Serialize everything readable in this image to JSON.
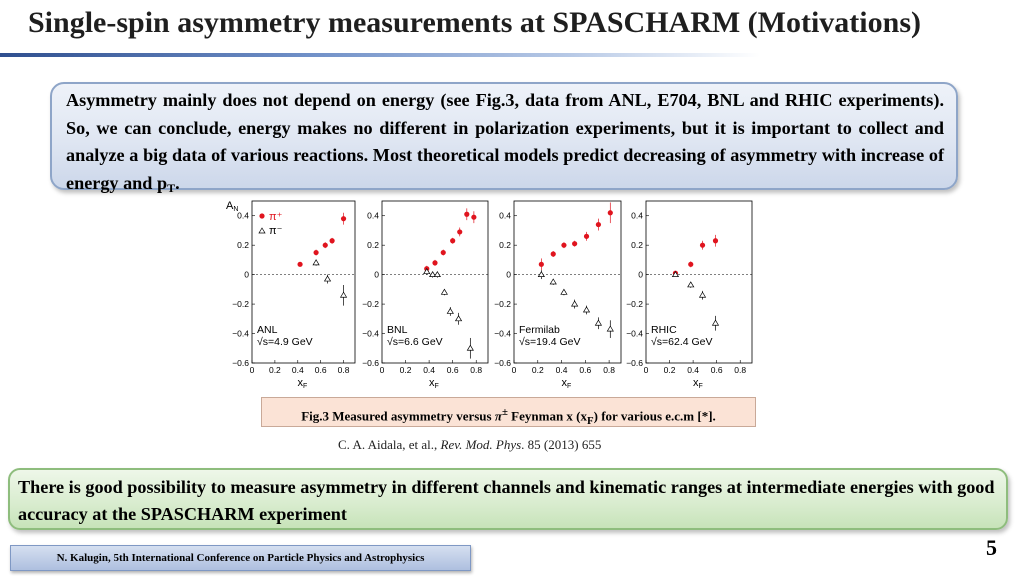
{
  "slide": {
    "title": "Single-spin asymmetry measurements at SPASCHARM (Motivations)",
    "top_text": "Asymmetry mainly does not depend on energy (see Fig.3, data from ANL, E704, BNL and RHIC experiments). So, we can conclude, energy makes no different in polarization experiments, but it is important to collect and analyze a big data of various reactions. Most theoretical models predict decreasing of asymmetry with increase of energy and p",
    "top_text_sub": "T",
    "top_text_end": ".",
    "caption_pre": "Fig.3 Measured asymmetry versus ",
    "caption_pion": "π",
    "caption_pm": "±",
    "caption_mid": " Feynman x (x",
    "caption_sub": "F",
    "caption_post": ") for various e.c.m [*].",
    "cite_authors": "C. A. Aidala, et al., ",
    "cite_journal": "Rev. Mod. Phys",
    "cite_rest": ". 85 (2013) 655",
    "bottom_text": "There is good possibility to measure asymmetry in different channels and kinematic ranges at intermediate energies with good accuracy at the SPASCHARM experiment",
    "page_number": "5",
    "footer": "N. Kalugin, 5th International Conference on Particle Physics and Astrophysics"
  },
  "colors": {
    "pi_plus": "#e0141e",
    "pi_minus": "#000000",
    "top_box": "#dfe6f2",
    "bottom_box": "#d8ecce",
    "caption_box": "#fbe3d6"
  },
  "chart_data": [
    {
      "type": "scatter",
      "title": "",
      "ylabel": "A_N",
      "xlabel": "x_F",
      "xlim": [
        0,
        0.9
      ],
      "ylim": [
        -0.6,
        0.5
      ],
      "xticks": [
        "0",
        "0.2",
        "0.4",
        "0.6",
        "0.8"
      ],
      "yticks": [
        "0.4",
        "0.2",
        "0",
        "−0.2",
        "−0.4",
        "−0.6"
      ],
      "legend": [
        "π⁺",
        "π⁻"
      ],
      "label_experiment": "ANL",
      "label_energy": "√s=4.9 GeV",
      "series": [
        {
          "name": "π⁺",
          "x": [
            0.42,
            0.56,
            0.64,
            0.7,
            0.8
          ],
          "y": [
            0.07,
            0.15,
            0.2,
            0.23,
            0.38
          ],
          "err": [
            0.01,
            0.02,
            0.02,
            0.02,
            0.04
          ]
        },
        {
          "name": "π⁻",
          "x": [
            0.56,
            0.66,
            0.8
          ],
          "y": [
            0.08,
            -0.03,
            -0.14
          ],
          "err": [
            0.02,
            0.03,
            0.07
          ]
        }
      ]
    },
    {
      "type": "scatter",
      "title": "",
      "ylabel": "",
      "xlabel": "x_F",
      "xlim": [
        0,
        0.9
      ],
      "ylim": [
        -0.6,
        0.5
      ],
      "xticks": [
        "0",
        "0.2",
        "0.4",
        "0.6",
        "0.8"
      ],
      "yticks": [
        "0.4",
        "0.2",
        "0",
        "−0.2",
        "−0.4",
        "−0.6"
      ],
      "label_experiment": "BNL",
      "label_energy": "√s=6.6 GeV",
      "series": [
        {
          "name": "π⁺",
          "x": [
            0.38,
            0.45,
            0.52,
            0.6,
            0.66,
            0.72,
            0.78
          ],
          "y": [
            0.04,
            0.08,
            0.15,
            0.23,
            0.29,
            0.41,
            0.39
          ],
          "err": [
            0.02,
            0.02,
            0.02,
            0.02,
            0.03,
            0.04,
            0.04
          ]
        },
        {
          "name": "π⁻",
          "x": [
            0.38,
            0.43,
            0.47,
            0.53,
            0.58,
            0.65,
            0.75
          ],
          "y": [
            0.02,
            0.0,
            0.0,
            -0.12,
            -0.25,
            -0.3,
            -0.5
          ],
          "err": [
            0.02,
            0.02,
            0.02,
            0.02,
            0.03,
            0.04,
            0.07
          ]
        }
      ]
    },
    {
      "type": "scatter",
      "title": "",
      "ylabel": "",
      "xlabel": "x_F",
      "xlim": [
        0,
        0.9
      ],
      "ylim": [
        -0.6,
        0.5
      ],
      "xticks": [
        "0",
        "0.2",
        "0.4",
        "0.6",
        "0.8"
      ],
      "yticks": [
        "0.4",
        "0.2",
        "0",
        "−0.2",
        "−0.4",
        "−0.6"
      ],
      "label_experiment": "Fermilab",
      "label_energy": "√s=19.4 GeV",
      "series": [
        {
          "name": "π⁺",
          "x": [
            0.23,
            0.33,
            0.42,
            0.51,
            0.61,
            0.71,
            0.81
          ],
          "y": [
            0.07,
            0.14,
            0.2,
            0.21,
            0.26,
            0.34,
            0.42
          ],
          "err": [
            0.04,
            0.02,
            0.02,
            0.02,
            0.03,
            0.04,
            0.07
          ]
        },
        {
          "name": "π⁻",
          "x": [
            0.23,
            0.33,
            0.42,
            0.51,
            0.61,
            0.71,
            0.81
          ],
          "y": [
            0.0,
            -0.05,
            -0.12,
            -0.2,
            -0.24,
            -0.33,
            -0.37
          ],
          "err": [
            0.03,
            0.02,
            0.02,
            0.03,
            0.03,
            0.04,
            0.06
          ]
        }
      ]
    },
    {
      "type": "scatter",
      "title": "",
      "ylabel": "",
      "xlabel": "x_F",
      "xlim": [
        0,
        0.9
      ],
      "ylim": [
        -0.6,
        0.5
      ],
      "xticks": [
        "0",
        "0.2",
        "0.4",
        "0.6",
        "0.8"
      ],
      "yticks": [
        "0.4",
        "0.2",
        "0",
        "−0.2",
        "−0.4",
        "−0.6"
      ],
      "label_experiment": "RHIC",
      "label_energy": "√s=62.4 GeV",
      "series": [
        {
          "name": "π⁺",
          "x": [
            0.25,
            0.38,
            0.48,
            0.59
          ],
          "y": [
            0.01,
            0.07,
            0.2,
            0.23
          ],
          "err": [
            0.01,
            0.02,
            0.03,
            0.04
          ]
        },
        {
          "name": "π⁻",
          "x": [
            0.25,
            0.38,
            0.48,
            0.59
          ],
          "y": [
            0.0,
            -0.07,
            -0.14,
            -0.33
          ],
          "err": [
            0.01,
            0.02,
            0.03,
            0.05
          ]
        }
      ]
    }
  ]
}
